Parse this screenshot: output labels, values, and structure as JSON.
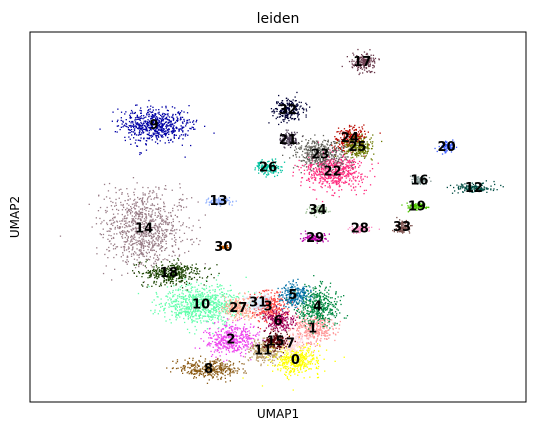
{
  "chart_data": {
    "type": "scatter",
    "title": "leiden",
    "xlabel": "UMAP1",
    "ylabel": "UMAP2",
    "grid": false,
    "legend": "on data",
    "xlim": [
      0,
      100
    ],
    "ylim": [
      0,
      100
    ],
    "clusters": [
      {
        "label": "0",
        "x": 53.5,
        "y": 11.5,
        "color": "#ffff00"
      },
      {
        "label": "1",
        "x": 57.0,
        "y": 20.0,
        "color": "#ff9999"
      },
      {
        "label": "2",
        "x": 40.5,
        "y": 17.0,
        "color": "#ee44ee"
      },
      {
        "label": "3",
        "x": 48.0,
        "y": 26.0,
        "color": "#ff4a46"
      },
      {
        "label": "4",
        "x": 58.0,
        "y": 26.0,
        "color": "#008941"
      },
      {
        "label": "5",
        "x": 53.0,
        "y": 29.0,
        "color": "#006fa6"
      },
      {
        "label": "6",
        "x": 50.0,
        "y": 22.0,
        "color": "#a30059"
      },
      {
        "label": "7",
        "x": 52.5,
        "y": 16.0,
        "color": "#ffdbe5"
      },
      {
        "label": "8",
        "x": 36.0,
        "y": 9.0,
        "color": "#8b5a14"
      },
      {
        "label": "9",
        "x": 25.0,
        "y": 75.0,
        "color": "#0000a6"
      },
      {
        "label": "10",
        "x": 34.5,
        "y": 26.5,
        "color": "#63ffac"
      },
      {
        "label": "11",
        "x": 47.0,
        "y": 14.0,
        "color": "#b79762"
      },
      {
        "label": "12",
        "x": 89.5,
        "y": 58.0,
        "color": "#004d43"
      },
      {
        "label": "13",
        "x": 38.0,
        "y": 54.5,
        "color": "#8fb0ff"
      },
      {
        "label": "14",
        "x": 23.0,
        "y": 47.0,
        "color": "#997d87"
      },
      {
        "label": "15",
        "x": 49.5,
        "y": 16.5,
        "color": "#5a0007"
      },
      {
        "label": "16",
        "x": 78.5,
        "y": 60.0,
        "color": "#809693"
      },
      {
        "label": "17",
        "x": 67.0,
        "y": 92.0,
        "color": "#6a3a4c"
      },
      {
        "label": "18",
        "x": 28.0,
        "y": 35.0,
        "color": "#1b4400"
      },
      {
        "label": "19",
        "x": 78.0,
        "y": 53.0,
        "color": "#4fc601"
      },
      {
        "label": "20",
        "x": 84.0,
        "y": 69.0,
        "color": "#3b5dff"
      },
      {
        "label": "21",
        "x": 52.0,
        "y": 71.0,
        "color": "#4a3b53"
      },
      {
        "label": "22",
        "x": 61.0,
        "y": 62.5,
        "color": "#ff2f80"
      },
      {
        "label": "23",
        "x": 58.5,
        "y": 67.0,
        "color": "#61615a"
      },
      {
        "label": "24",
        "x": 64.5,
        "y": 71.5,
        "color": "#ba0900"
      },
      {
        "label": "25",
        "x": 66.0,
        "y": 69.0,
        "color": "#6b7900"
      },
      {
        "label": "26",
        "x": 48.0,
        "y": 63.5,
        "color": "#00c2a0"
      },
      {
        "label": "27",
        "x": 42.0,
        "y": 25.5,
        "color": "#ffaa92"
      },
      {
        "label": "28",
        "x": 66.5,
        "y": 47.0,
        "color": "#ff90c9"
      },
      {
        "label": "29",
        "x": 57.5,
        "y": 44.5,
        "color": "#b903aa"
      },
      {
        "label": "30",
        "x": 39.0,
        "y": 42.0,
        "color": "#d16100"
      },
      {
        "label": "31",
        "x": 46.0,
        "y": 27.0,
        "color": "#ddefff"
      },
      {
        "label": "32",
        "x": 52.0,
        "y": 79.0,
        "color": "#000035"
      },
      {
        "label": "33",
        "x": 75.0,
        "y": 47.5,
        "color": "#7b4f4b"
      },
      {
        "label": "34",
        "x": 58.0,
        "y": 52.0,
        "color": "#a1c299"
      }
    ]
  }
}
